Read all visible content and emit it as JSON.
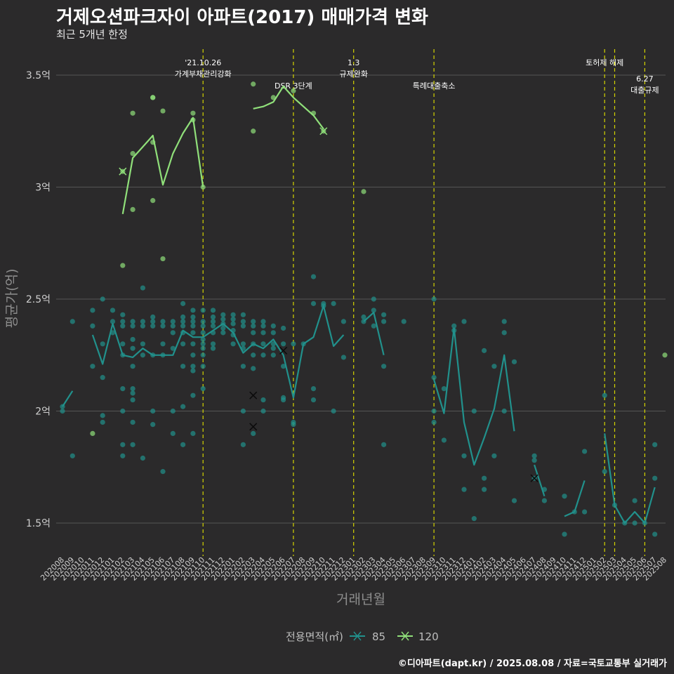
{
  "header": {
    "title": "거제오션파크자이 아파트(2017) 매매가격 변화",
    "subtitle": "최근 5개년 한정"
  },
  "caption": "©디아파트(dapt.kr) / 2025.08.08 / 자료=국토교통부 실거래가",
  "colors": {
    "s85": "#21918c",
    "s120": "#90e07a",
    "vline": "#d4d400",
    "grid": "#555555"
  },
  "chart_data": {
    "type": "line",
    "xlabel": "거래년월",
    "ylabel": "평균가(억)",
    "ylim": [
      1.36,
      3.6
    ],
    "categories": [
      "202008",
      "202009",
      "202010",
      "202011",
      "202012",
      "202101",
      "202102",
      "202103",
      "202104",
      "202105",
      "202106",
      "202107",
      "202108",
      "202109",
      "202110",
      "202111",
      "202112",
      "202201",
      "202202",
      "202203",
      "202204",
      "202205",
      "202206",
      "202207",
      "202208",
      "202209",
      "202210",
      "202211",
      "202212",
      "202301",
      "202302",
      "202303",
      "202304",
      "202305",
      "202306",
      "202307",
      "202308",
      "202309",
      "202310",
      "202311",
      "202312",
      "202401",
      "202402",
      "202403",
      "202404",
      "202405",
      "202406",
      "202407",
      "202408",
      "202409",
      "202410",
      "202411",
      "202412",
      "202501",
      "202502",
      "202503",
      "202504",
      "202505",
      "202506",
      "202507",
      "202508"
    ],
    "yticks": [
      {
        "value": 1.5,
        "label": "1.5억"
      },
      {
        "value": 2.0,
        "label": "2억"
      },
      {
        "value": 2.5,
        "label": "2.5억"
      },
      {
        "value": 3.0,
        "label": "3억"
      },
      {
        "value": 3.5,
        "label": "3.5억"
      }
    ],
    "legend_title": "전용면적(㎡)",
    "series": [
      {
        "name": "85",
        "color": "#21918c",
        "values": [
          2.02,
          2.09,
          null,
          2.34,
          2.21,
          2.39,
          2.25,
          2.24,
          2.28,
          2.25,
          2.25,
          2.25,
          2.36,
          2.33,
          2.33,
          2.36,
          2.39,
          2.35,
          2.26,
          2.3,
          2.28,
          2.32,
          2.25,
          2.06,
          2.3,
          2.33,
          2.47,
          2.29,
          2.34,
          null,
          2.4,
          2.44,
          2.25,
          null,
          null,
          null,
          null,
          2.14,
          1.99,
          2.37,
          1.95,
          1.76,
          1.88,
          2.01,
          2.25,
          1.91,
          null,
          1.76,
          1.62,
          null,
          1.53,
          1.55,
          1.69,
          null,
          1.9,
          1.58,
          1.5,
          1.55,
          1.5,
          1.66,
          null
        ]
      },
      {
        "name": "120",
        "color": "#90e07a",
        "values": [
          null,
          null,
          null,
          1.9,
          null,
          null,
          2.88,
          3.13,
          3.18,
          3.23,
          3.01,
          3.15,
          3.24,
          3.31,
          3.0,
          null,
          null,
          null,
          null,
          3.35,
          3.36,
          3.38,
          3.45,
          3.4,
          3.36,
          3.32,
          3.26,
          null,
          null,
          null,
          2.98,
          null,
          null,
          null,
          null,
          null,
          null,
          null,
          null,
          null,
          null,
          null,
          null,
          null,
          null,
          null,
          null,
          null,
          null,
          null,
          null,
          null,
          null,
          null,
          null,
          null,
          null,
          null,
          null,
          null,
          2.25
        ]
      }
    ],
    "points_85": [
      [
        0,
        2.0
      ],
      [
        0,
        2.02
      ],
      [
        1,
        2.4
      ],
      [
        1,
        1.8
      ],
      [
        3,
        2.45
      ],
      [
        3,
        2.38
      ],
      [
        3,
        2.2
      ],
      [
        4,
        2.5
      ],
      [
        4,
        2.3
      ],
      [
        4,
        2.15
      ],
      [
        4,
        1.95
      ],
      [
        4,
        1.98
      ],
      [
        5,
        2.4
      ],
      [
        5,
        2.45
      ],
      [
        5,
        2.35
      ],
      [
        6,
        2.43
      ],
      [
        6,
        2.4
      ],
      [
        6,
        2.38
      ],
      [
        6,
        2.3
      ],
      [
        6,
        2.25
      ],
      [
        6,
        2.1
      ],
      [
        6,
        2.0
      ],
      [
        6,
        1.85
      ],
      [
        6,
        1.8
      ],
      [
        7,
        2.4
      ],
      [
        7,
        2.38
      ],
      [
        7,
        2.32
      ],
      [
        7,
        2.28
      ],
      [
        7,
        2.2
      ],
      [
        7,
        2.1
      ],
      [
        7,
        2.08
      ],
      [
        7,
        2.05
      ],
      [
        7,
        1.95
      ],
      [
        7,
        1.85
      ],
      [
        8,
        2.55
      ],
      [
        8,
        2.4
      ],
      [
        8,
        2.38
      ],
      [
        8,
        2.3
      ],
      [
        8,
        2.25
      ],
      [
        8,
        1.79
      ],
      [
        9,
        2.42
      ],
      [
        9,
        2.4
      ],
      [
        9,
        2.38
      ],
      [
        9,
        2.25
      ],
      [
        9,
        2.0
      ],
      [
        9,
        1.94
      ],
      [
        10,
        2.4
      ],
      [
        10,
        2.38
      ],
      [
        10,
        2.3
      ],
      [
        10,
        2.25
      ],
      [
        10,
        1.73
      ],
      [
        11,
        2.4
      ],
      [
        11,
        2.38
      ],
      [
        11,
        2.35
      ],
      [
        11,
        2.28
      ],
      [
        11,
        2.0
      ],
      [
        11,
        1.9
      ],
      [
        12,
        2.48
      ],
      [
        12,
        2.42
      ],
      [
        12,
        2.4
      ],
      [
        12,
        2.38
      ],
      [
        12,
        2.35
      ],
      [
        12,
        2.3
      ],
      [
        12,
        2.2
      ],
      [
        12,
        2.02
      ],
      [
        12,
        1.85
      ],
      [
        13,
        2.45
      ],
      [
        13,
        2.42
      ],
      [
        13,
        2.4
      ],
      [
        13,
        2.38
      ],
      [
        13,
        2.35
      ],
      [
        13,
        2.3
      ],
      [
        13,
        2.25
      ],
      [
        13,
        2.2
      ],
      [
        13,
        2.18
      ],
      [
        13,
        2.07
      ],
      [
        13,
        1.9
      ],
      [
        14,
        2.45
      ],
      [
        14,
        2.4
      ],
      [
        14,
        2.38
      ],
      [
        14,
        2.35
      ],
      [
        14,
        2.32
      ],
      [
        14,
        2.3
      ],
      [
        14,
        2.28
      ],
      [
        14,
        2.25
      ],
      [
        14,
        2.2
      ],
      [
        14,
        2.1
      ],
      [
        15,
        2.45
      ],
      [
        15,
        2.42
      ],
      [
        15,
        2.4
      ],
      [
        15,
        2.38
      ],
      [
        15,
        2.35
      ],
      [
        15,
        2.3
      ],
      [
        15,
        2.28
      ],
      [
        16,
        2.43
      ],
      [
        16,
        2.41
      ],
      [
        16,
        2.39
      ],
      [
        16,
        2.37
      ],
      [
        16,
        2.35
      ],
      [
        17,
        2.43
      ],
      [
        17,
        2.41
      ],
      [
        17,
        2.39
      ],
      [
        17,
        2.36
      ],
      [
        17,
        2.34
      ],
      [
        17,
        2.3
      ],
      [
        18,
        2.43
      ],
      [
        18,
        2.4
      ],
      [
        18,
        2.38
      ],
      [
        18,
        2.3
      ],
      [
        18,
        2.28
      ],
      [
        18,
        2.2
      ],
      [
        18,
        2.0
      ],
      [
        18,
        1.85
      ],
      [
        19,
        2.4
      ],
      [
        19,
        2.38
      ],
      [
        19,
        2.35
      ],
      [
        19,
        2.3
      ],
      [
        19,
        2.25
      ],
      [
        19,
        2.19
      ],
      [
        19,
        1.9
      ],
      [
        20,
        2.4
      ],
      [
        20,
        2.38
      ],
      [
        20,
        2.35
      ],
      [
        20,
        2.3
      ],
      [
        20,
        2.25
      ],
      [
        20,
        2.05
      ],
      [
        20,
        2.0
      ],
      [
        21,
        2.38
      ],
      [
        21,
        2.35
      ],
      [
        21,
        2.3
      ],
      [
        21,
        2.28
      ],
      [
        21,
        2.25
      ],
      [
        22,
        2.37
      ],
      [
        22,
        2.3
      ],
      [
        22,
        2.2
      ],
      [
        22,
        2.06
      ],
      [
        22,
        2.05
      ],
      [
        23,
        2.3
      ],
      [
        23,
        1.95
      ],
      [
        23,
        1.94
      ],
      [
        24,
        2.3
      ],
      [
        25,
        2.6
      ],
      [
        25,
        2.48
      ],
      [
        25,
        2.1
      ],
      [
        25,
        2.05
      ],
      [
        26,
        2.48
      ],
      [
        26,
        2.47
      ],
      [
        27,
        2.48
      ],
      [
        27,
        2.0
      ],
      [
        28,
        2.4
      ],
      [
        28,
        2.24
      ],
      [
        30,
        2.42
      ],
      [
        30,
        2.4
      ],
      [
        31,
        2.5
      ],
      [
        31,
        2.45
      ],
      [
        31,
        2.38
      ],
      [
        32,
        2.43
      ],
      [
        32,
        2.4
      ],
      [
        32,
        2.2
      ],
      [
        32,
        1.85
      ],
      [
        34,
        2.4
      ],
      [
        37,
        2.5
      ],
      [
        37,
        2.15
      ],
      [
        37,
        2.0
      ],
      [
        37,
        1.95
      ],
      [
        38,
        2.1
      ],
      [
        38,
        1.87
      ],
      [
        39,
        2.38
      ],
      [
        39,
        2.36
      ],
      [
        40,
        2.4
      ],
      [
        40,
        1.8
      ],
      [
        40,
        1.65
      ],
      [
        41,
        2.0
      ],
      [
        41,
        1.52
      ],
      [
        42,
        2.27
      ],
      [
        42,
        1.7
      ],
      [
        42,
        1.65
      ],
      [
        43,
        2.2
      ],
      [
        43,
        1.8
      ],
      [
        44,
        2.4
      ],
      [
        44,
        2.35
      ],
      [
        44,
        2.0
      ],
      [
        45,
        2.22
      ],
      [
        45,
        1.6
      ],
      [
        47,
        1.8
      ],
      [
        47,
        1.78
      ],
      [
        47,
        1.7
      ],
      [
        48,
        1.65
      ],
      [
        48,
        1.6
      ],
      [
        50,
        1.62
      ],
      [
        50,
        1.45
      ],
      [
        51,
        1.55
      ],
      [
        52,
        1.82
      ],
      [
        52,
        1.55
      ],
      [
        54,
        2.07
      ],
      [
        54,
        1.73
      ],
      [
        55,
        1.58
      ],
      [
        56,
        1.5
      ],
      [
        57,
        1.6
      ],
      [
        57,
        1.5
      ],
      [
        58,
        1.5
      ],
      [
        59,
        1.85
      ],
      [
        59,
        1.7
      ],
      [
        59,
        1.45
      ]
    ],
    "points_120": [
      [
        3,
        1.9
      ],
      [
        6,
        2.65
      ],
      [
        6,
        3.07
      ],
      [
        7,
        3.33
      ],
      [
        7,
        3.15
      ],
      [
        7,
        2.9
      ],
      [
        9,
        3.4
      ],
      [
        9,
        3.4
      ],
      [
        9,
        3.2
      ],
      [
        9,
        2.94
      ],
      [
        10,
        3.34
      ],
      [
        10,
        2.68
      ],
      [
        13,
        3.33
      ],
      [
        13,
        3.3
      ],
      [
        14,
        3.0
      ],
      [
        19,
        3.46
      ],
      [
        19,
        3.25
      ],
      [
        21,
        3.4
      ],
      [
        23,
        3.43
      ],
      [
        25,
        3.33
      ],
      [
        26,
        3.25
      ],
      [
        30,
        2.98
      ],
      [
        60,
        2.25
      ]
    ],
    "x_marks_85": [
      [
        19,
        2.07
      ],
      [
        19,
        1.93
      ],
      [
        22,
        2.27
      ],
      [
        47,
        1.7
      ]
    ],
    "x_marks_120": [
      [
        6,
        3.07
      ],
      [
        26,
        3.25
      ]
    ],
    "events": [
      {
        "idx": 14,
        "lines": [
          "'21.10.26",
          "가계부채관리강화"
        ],
        "row": 0
      },
      {
        "idx": 23,
        "lines": [
          "DSR 3단계"
        ],
        "row": 1
      },
      {
        "idx": 29,
        "lines": [
          "1.3",
          "규제완화"
        ],
        "row": 0
      },
      {
        "idx": 37,
        "lines": [
          "특례대출축소"
        ],
        "row": 1
      },
      {
        "idx": 54,
        "lines": [
          "토허제 해제"
        ],
        "row": 0
      },
      {
        "idx": 55,
        "lines": [],
        "row": 0
      },
      {
        "idx": 58,
        "lines": [
          "6.27",
          "대출규제"
        ],
        "row": 2
      }
    ]
  }
}
